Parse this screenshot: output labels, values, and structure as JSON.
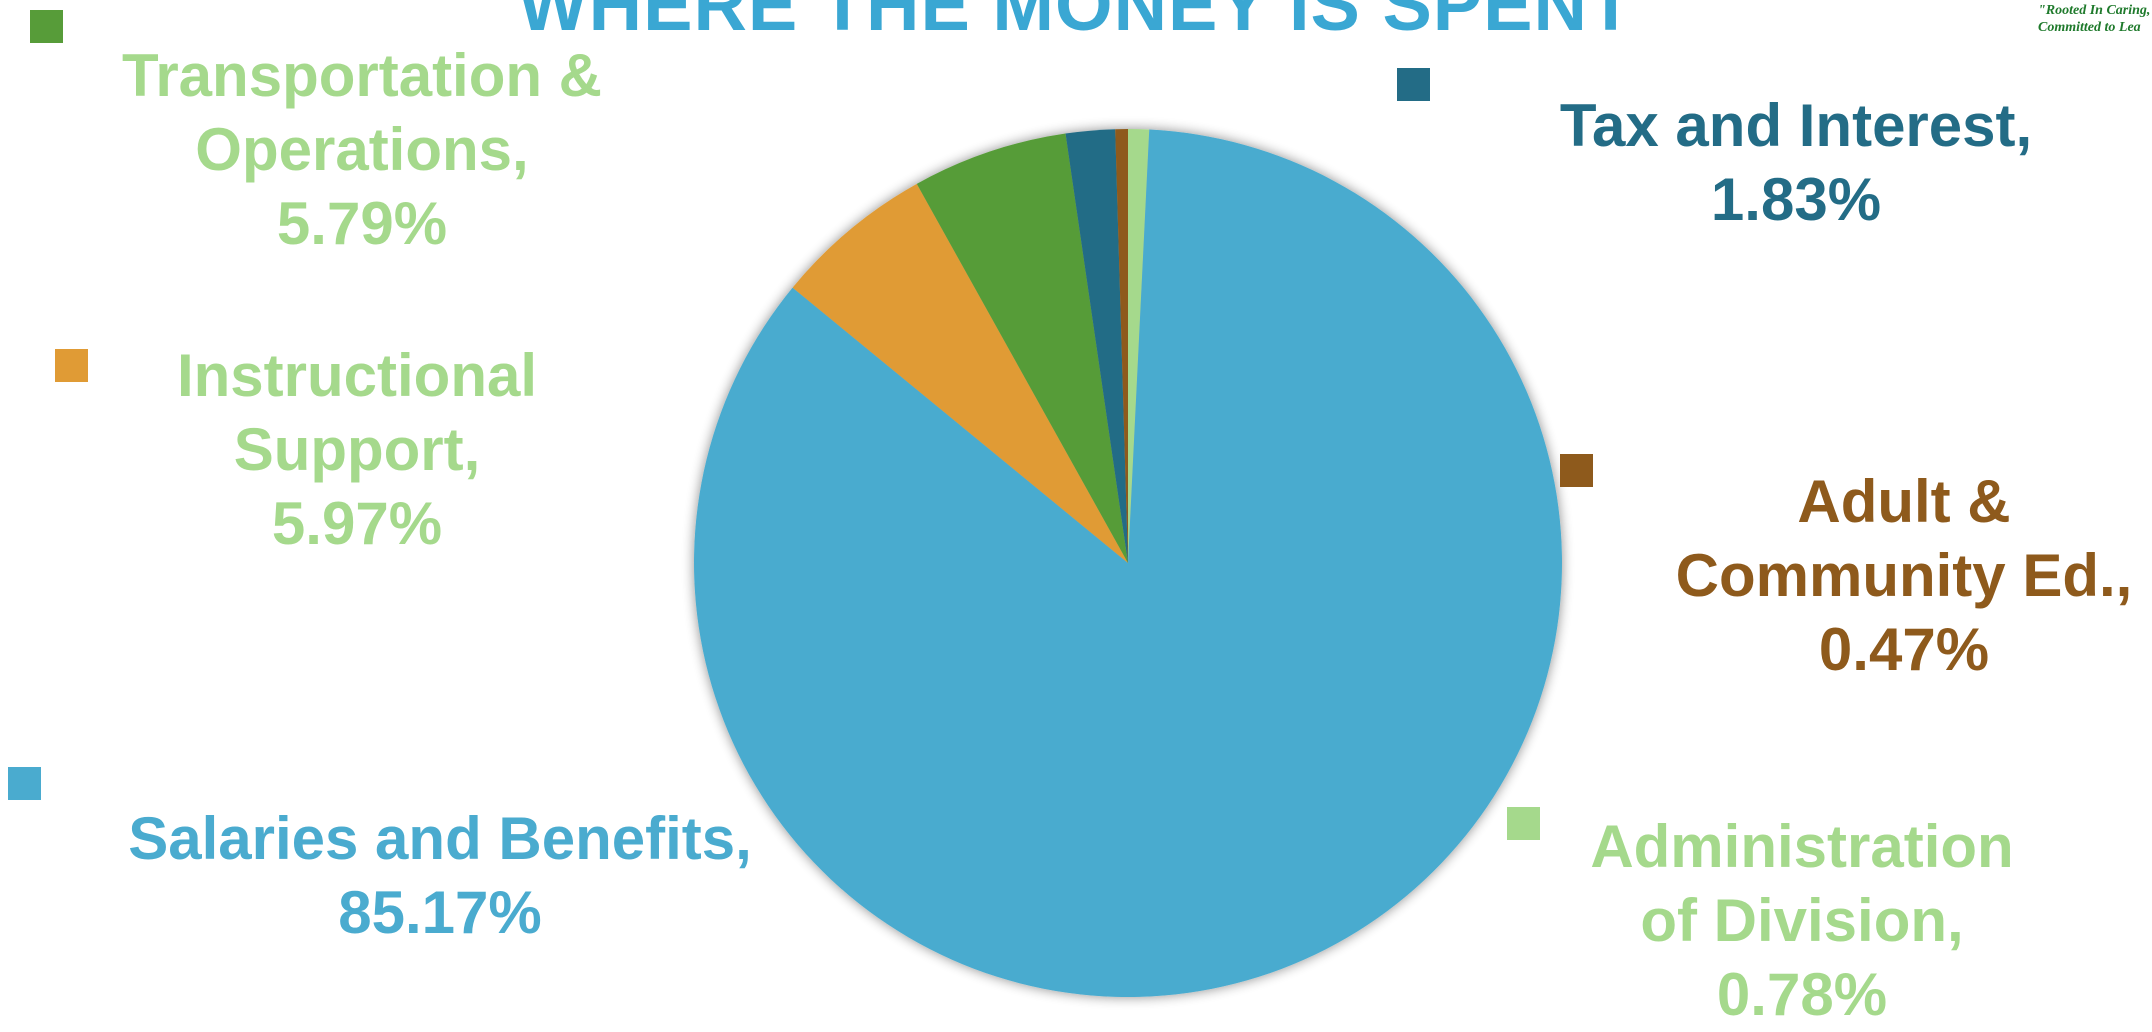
{
  "header": {
    "title": "WHERE THE MONEY IS SPENT",
    "tagline_line1": "\"Rooted In Caring,",
    "tagline_line2": "Committed to Lea"
  },
  "chart_data": {
    "type": "pie",
    "title": "WHERE THE MONEY IS SPENT",
    "slices": [
      {
        "name": "Administration of Division",
        "label_lines": [
          "Administration",
          "of Division,",
          "0.78%"
        ],
        "value": 0.78,
        "color": "#a5d98c"
      },
      {
        "name": "Salaries and Benefits",
        "label_lines": [
          "Salaries and Benefits,",
          "85.17%"
        ],
        "value": 85.17,
        "color": "#4aabcf"
      },
      {
        "name": "Instructional Support",
        "label_lines": [
          "Instructional",
          "Support,",
          "5.97%"
        ],
        "value": 5.97,
        "color": "#e09b35"
      },
      {
        "name": "Transportation & Operations",
        "label_lines": [
          "Transportation &",
          "Operations,",
          "5.79%"
        ],
        "value": 5.79,
        "color": "#579c39"
      },
      {
        "name": "Tax and Interest",
        "label_lines": [
          "Tax and Interest,",
          "1.83%"
        ],
        "value": 1.83,
        "color": "#236c86"
      },
      {
        "name": "Adult & Community Ed.",
        "label_lines": [
          "Adult &",
          "Community Ed.,",
          "0.47%"
        ],
        "value": 0.47,
        "color": "#8e5a1c"
      }
    ],
    "label_colors": {
      "Administration of Division": "#a5d98c",
      "Salaries and Benefits": "#4aabcf",
      "Instructional Support": "#a5d98c",
      "Transportation & Operations": "#a5d98c",
      "Tax and Interest": "#236c86",
      "Adult & Community Ed.": "#8e5a1c"
    },
    "legend": "swatches beside each label"
  }
}
